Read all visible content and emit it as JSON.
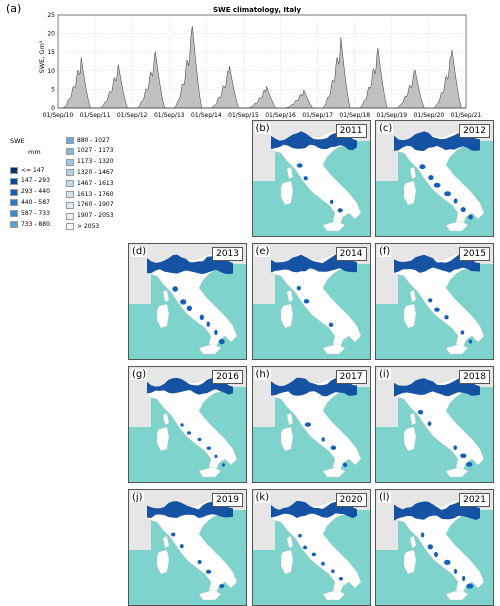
{
  "chart_data": [
    {
      "type": "area",
      "panel_label": "(a)",
      "title": "SWE climatology, Italy",
      "ylabel": "SWE, Gm³",
      "ylim": [
        0,
        25
      ],
      "yticks": [
        0,
        5,
        10,
        15,
        20,
        25
      ],
      "x_ticks": [
        "01/Sep/10",
        "01/Sep/11",
        "01/Sep/12",
        "01/Sep/13",
        "01/Sep/14",
        "01/Sep/15",
        "01/Sep/16",
        "01/Sep/17",
        "01/Sep/18",
        "01/Sep/19",
        "01/Sep/20",
        "01/Sep/21"
      ],
      "grid": true,
      "fill_color": "#c0c0c0",
      "line_color": "#333333",
      "season_peaks": [
        {
          "season": "2010-11",
          "peak": 14
        },
        {
          "season": "2011-12",
          "peak": 12
        },
        {
          "season": "2012-13",
          "peak": 15.5
        },
        {
          "season": "2013-14",
          "peak": 22.5
        },
        {
          "season": "2014-15",
          "peak": 11.5
        },
        {
          "season": "2015-16",
          "peak": 6
        },
        {
          "season": "2016-17",
          "peak": 5
        },
        {
          "season": "2017-18",
          "peak": 19.5
        },
        {
          "season": "2018-19",
          "peak": 16.5
        },
        {
          "season": "2019-20",
          "peak": 10.5
        },
        {
          "season": "2020-21",
          "peak": 16
        }
      ]
    },
    {
      "type": "heatmap",
      "description_units": "mm",
      "legend_title": "SWE",
      "legend_unit": "mm",
      "classes": [
        {
          "label": "<= 147",
          "color": "#08306b"
        },
        {
          "label": "147 - 293",
          "color": "#0b4aa0"
        },
        {
          "label": "293 - 440",
          "color": "#1560b8"
        },
        {
          "label": "440 - 587",
          "color": "#2878c6"
        },
        {
          "label": "587 - 733",
          "color": "#3b8bd0"
        },
        {
          "label": "733 - 880",
          "color": "#5aa0d8"
        },
        {
          "label": "880 - 1027",
          "color": "#6fa9d6"
        },
        {
          "label": "1027 - 1173",
          "color": "#86b7dd"
        },
        {
          "label": "1173 - 1320",
          "color": "#9ec6e4"
        },
        {
          "label": "1320 - 1467",
          "color": "#b2d1e9"
        },
        {
          "label": "1467 - 1613",
          "color": "#c3dbee"
        },
        {
          "label": "1613 - 1760",
          "color": "#d2e4f2"
        },
        {
          "label": "1760 - 1907",
          "color": "#dfecf6"
        },
        {
          "label": "1907 - 2053",
          "color": "#ebf3f9"
        },
        {
          "label": "> 2053",
          "color": "#f7fbfd"
        }
      ],
      "maps": [
        {
          "tag": "(b)",
          "year": "2011",
          "coverage": 0.55
        },
        {
          "tag": "(c)",
          "year": "2012",
          "coverage": 0.75
        },
        {
          "tag": "(d)",
          "year": "2013",
          "coverage": 0.85
        },
        {
          "tag": "(e)",
          "year": "2014",
          "coverage": 0.6
        },
        {
          "tag": "(f)",
          "year": "2015",
          "coverage": 0.55
        },
        {
          "tag": "(g)",
          "year": "2016",
          "coverage": 0.35
        },
        {
          "tag": "(h)",
          "year": "2017",
          "coverage": 0.6
        },
        {
          "tag": "(i)",
          "year": "2018",
          "coverage": 0.65
        },
        {
          "tag": "(j)",
          "year": "2019",
          "coverage": 0.5
        },
        {
          "tag": "(k)",
          "year": "2020",
          "coverage": 0.4
        },
        {
          "tag": "(l)",
          "year": "2021",
          "coverage": 0.8
        }
      ],
      "sea_color": "#7fd3cd",
      "land_color": "#ffffff",
      "outside_color": "#e6e6e6"
    }
  ]
}
